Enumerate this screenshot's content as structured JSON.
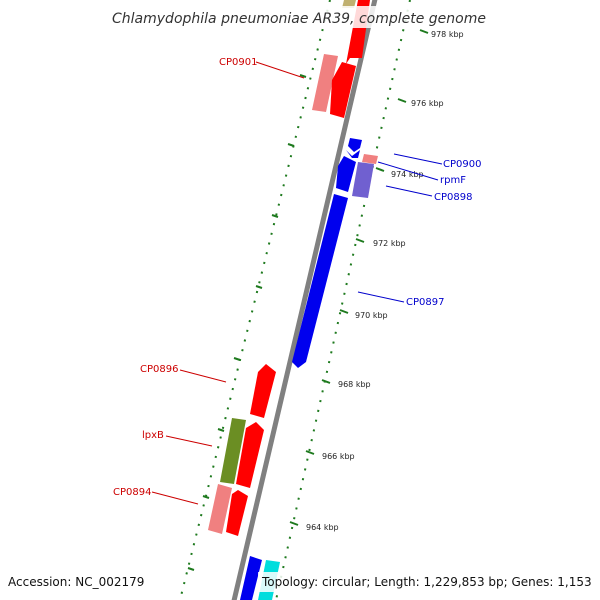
{
  "title": "Chlamydophila pneumoniae AR39, complete genome",
  "footer": {
    "accession": "Accession: NC_002179",
    "topology": "Topology: circular; Length: 1,229,853 bp; Genes: 1,153"
  },
  "colors": {
    "backbone": "#808080",
    "tick": "#1e7a1e",
    "label_red": "#cc0000",
    "label_blue": "#0000cc"
  },
  "kbp_labels": [
    "978 kbp",
    "976 kbp",
    "974 kbp",
    "972 kbp",
    "970 kbp",
    "968 kbp",
    "966 kbp",
    "964 kbp"
  ],
  "gene_labels": [
    {
      "text": "CP0901",
      "color": "red"
    },
    {
      "text": "CP0900",
      "color": "blue"
    },
    {
      "text": "rpmF",
      "color": "blue"
    },
    {
      "text": "CP0898",
      "color": "blue"
    },
    {
      "text": "CP0897",
      "color": "blue"
    },
    {
      "text": "CP0896",
      "color": "red"
    },
    {
      "text": "lpxB",
      "color": "red"
    },
    {
      "text": "CP0894",
      "color": "red"
    }
  ]
}
